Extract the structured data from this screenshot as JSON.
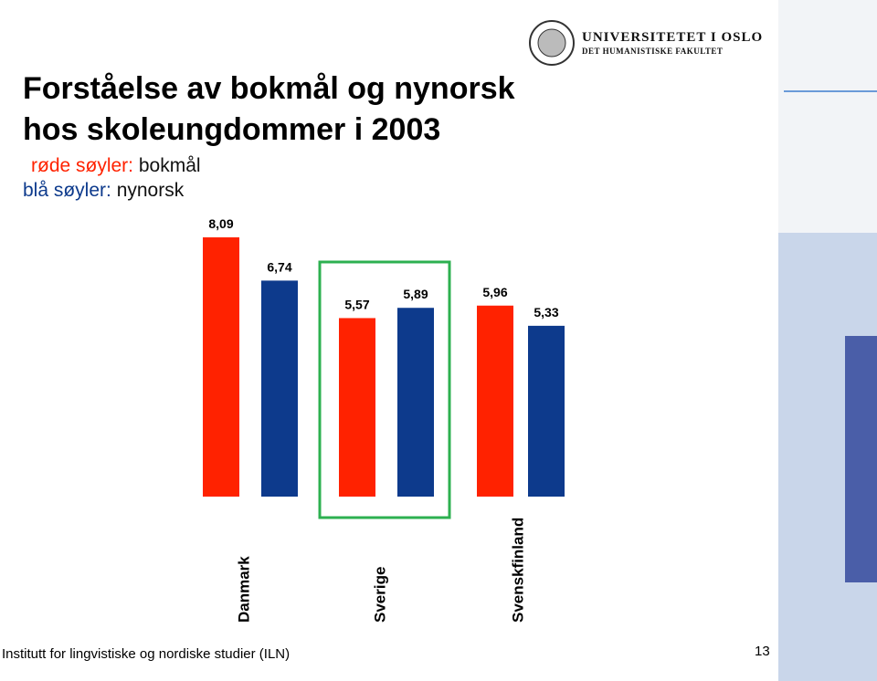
{
  "header": {
    "logo_line1": "UNIVERSITETET I OSLO",
    "logo_line2": "DET HUMANISTISKE FAKULTET"
  },
  "chart_data": {
    "type": "bar",
    "title": [
      "Forståelse av bokmål og nynorsk",
      "hos skoleungdommer  i 2003"
    ],
    "categories": [
      "Danmark",
      "Sverige",
      "Svenskfinland"
    ],
    "series": [
      {
        "name": "bokmål",
        "legend_key": "røde søyler:",
        "color": "#ff2200",
        "values": [
          8.09,
          5.57,
          5.96
        ],
        "value_labels": [
          "8,09",
          "5,57",
          "5,96"
        ]
      },
      {
        "name": "nynorsk",
        "legend_key": "blå søyler:",
        "color": "#0d3a8c",
        "values": [
          6.74,
          5.89,
          5.33
        ],
        "value_labels": [
          "6,74",
          "5,89",
          "5,33"
        ]
      }
    ]
  },
  "footer": {
    "institute": "Institutt for lingvistiske og nordiske studier (ILN)",
    "page": "13"
  }
}
